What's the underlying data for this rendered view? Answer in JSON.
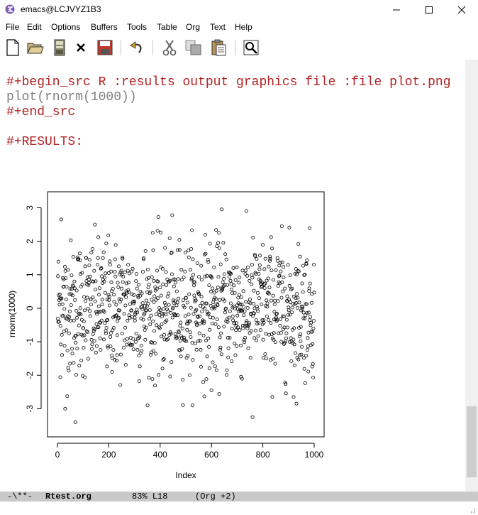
{
  "window": {
    "title": "emacs@LCJVYZ1B3",
    "minimize_label": "—",
    "maximize_label": "☐",
    "close_label": "✕"
  },
  "menu": {
    "items": [
      "File",
      "Edit",
      "Options",
      "Buffers",
      "Tools",
      "Table",
      "Org",
      "Text",
      "Help"
    ]
  },
  "toolbar": {
    "icons": [
      "new-file-icon",
      "open-folder-icon",
      "save-icon",
      "close-buffer-icon",
      "save-as-icon",
      "undo-icon",
      "cut-icon",
      "copy-icon",
      "paste-icon",
      "search-icon"
    ]
  },
  "buffer": {
    "line1": "#+begin_src R :results output graphics file :file plot.png",
    "line2": "plot(rnorm(1000))",
    "line3": "#+end_src",
    "line4": "#+RESULTS:"
  },
  "modeline": {
    "status": "-\\**-",
    "buffer_name": "Rtest.org",
    "position": "83% L18",
    "mode": "(Org +2)"
  },
  "chart_data": {
    "type": "scatter",
    "xlabel": "Index",
    "ylabel": "rnorm(1000)",
    "xlim": [
      0,
      1000
    ],
    "ylim": [
      -3.5,
      3.2
    ],
    "x_ticks": [
      "0",
      "200",
      "400",
      "600",
      "800",
      "1000"
    ],
    "y_ticks": [
      "-3",
      "-2",
      "-1",
      "0",
      "1",
      "2",
      "3"
    ],
    "n_points": 1000,
    "distribution": "standard normal",
    "notable_points": [
      {
        "x": 600,
        "y": 3.15
      },
      {
        "x": 920,
        "y": 3.1
      },
      {
        "x": 640,
        "y": 2.95
      },
      {
        "x": 15,
        "y": 2.65
      },
      {
        "x": 70,
        "y": -3.4
      },
      {
        "x": 760,
        "y": -3.25
      },
      {
        "x": 30,
        "y": -3.0
      },
      {
        "x": 920,
        "y": -2.65
      },
      {
        "x": 600,
        "y": -2.45
      }
    ],
    "marker": "open-circle",
    "color": "#000000"
  }
}
